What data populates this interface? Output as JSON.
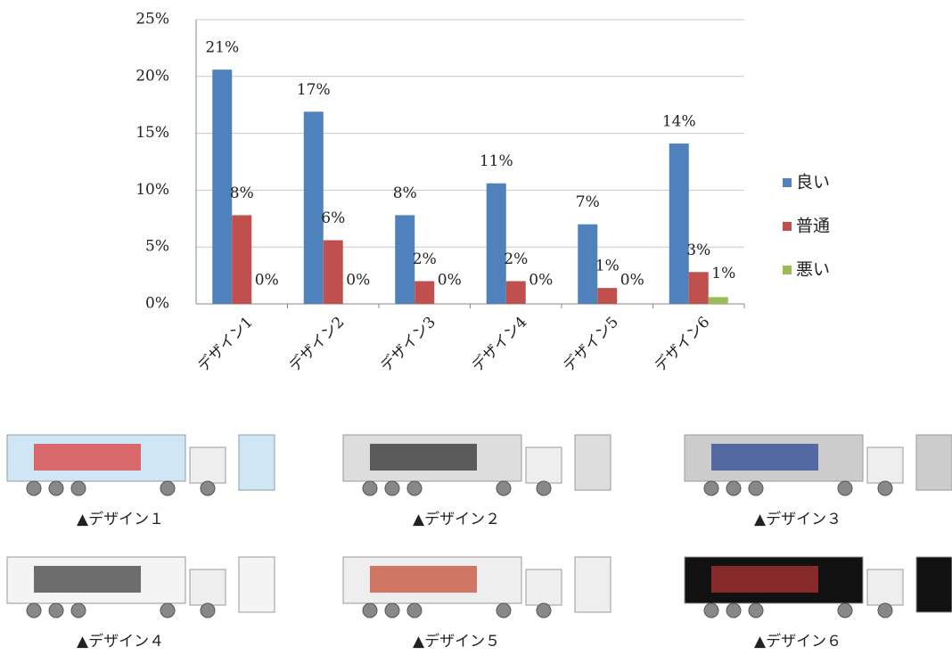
{
  "chart_data": {
    "type": "bar",
    "categories": [
      "デザイン1",
      "デザイン2",
      "デザイン3",
      "デザイン4",
      "デザイン5",
      "デザイン6"
    ],
    "series": [
      {
        "name": "良い",
        "color": "#4f81bd",
        "values": [
          20.6,
          16.9,
          7.8,
          10.6,
          7.0,
          14.1
        ],
        "value_labels": [
          "21%",
          "17%",
          "8%",
          "11%",
          "7%",
          "14%"
        ]
      },
      {
        "name": "普通",
        "color": "#c0504d",
        "values": [
          7.8,
          5.6,
          2.0,
          2.0,
          1.4,
          2.8
        ],
        "value_labels": [
          "8%",
          "6%",
          "2%",
          "2%",
          "1%",
          "3%"
        ]
      },
      {
        "name": "悪い",
        "color": "#9bbb59",
        "values": [
          0,
          0,
          0,
          0,
          0,
          0.6
        ],
        "value_labels": [
          "0%",
          "0%",
          "0%",
          "0%",
          "0%",
          "1%"
        ]
      }
    ],
    "ylim": [
      0,
      25
    ],
    "yticks": [
      {
        "value": 0,
        "label": "0%"
      },
      {
        "value": 5,
        "label": "5%"
      },
      {
        "value": 10,
        "label": "10%"
      },
      {
        "value": 15,
        "label": "15%"
      },
      {
        "value": 20,
        "label": "20%"
      },
      {
        "value": 25,
        "label": "25%"
      }
    ],
    "grid": true,
    "legend": "right"
  },
  "images": [
    {
      "caption": "▲デザイン１"
    },
    {
      "caption": "▲デザイン２"
    },
    {
      "caption": "▲デザイン３"
    },
    {
      "caption": "▲デザイン４"
    },
    {
      "caption": "▲デザイン５"
    },
    {
      "caption": "▲デザイン６"
    }
  ]
}
